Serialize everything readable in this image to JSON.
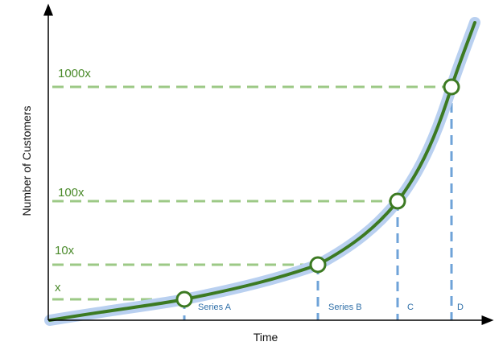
{
  "axes": {
    "x_label": "Time",
    "y_label": "Number of Customers"
  },
  "levels": [
    "x",
    "10x",
    "100x",
    "1000x"
  ],
  "stages": [
    "Series A",
    "Series B",
    "C",
    "D"
  ]
}
